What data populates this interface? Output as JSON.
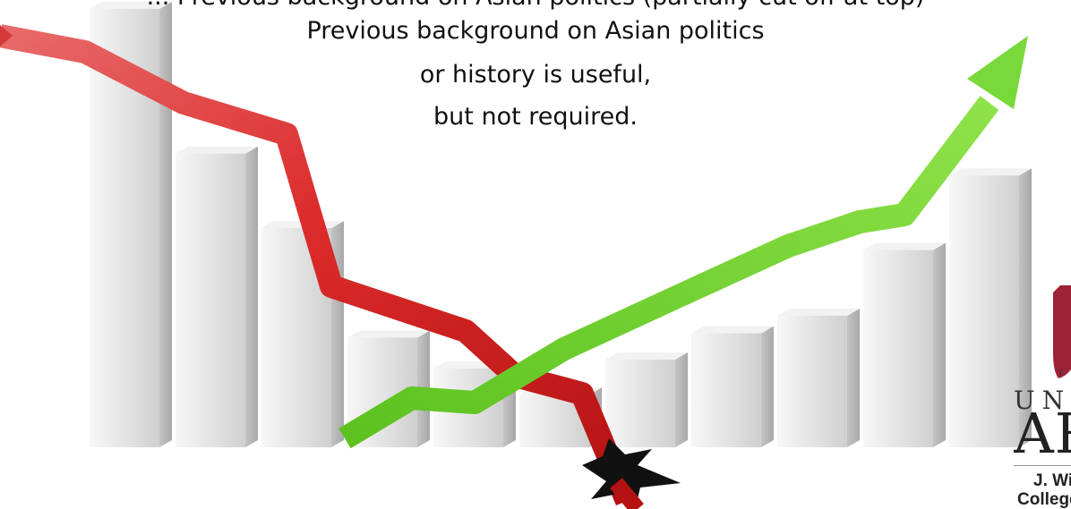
{
  "caption": {
    "line0": "... Previous background on Asian politics (partially cut off at top)",
    "line1": "Previous background on Asian politics",
    "line2": "or history is useful,",
    "line3": "but not required."
  },
  "illustration": {
    "bar_heights_relative": [
      1.0,
      0.67,
      0.5,
      0.25,
      0.18,
      0.12,
      0.2,
      0.26,
      0.3,
      0.45,
      0.62
    ],
    "down_arrow_color": "#d81e1e",
    "up_arrow_color": "#6fd12e",
    "bar_color": "#e6e6e6"
  },
  "logo": {
    "line_university": "UNIV",
    "line_arkansas": "ARK",
    "line_college_1": "J. Wil",
    "line_college_2": "College"
  }
}
